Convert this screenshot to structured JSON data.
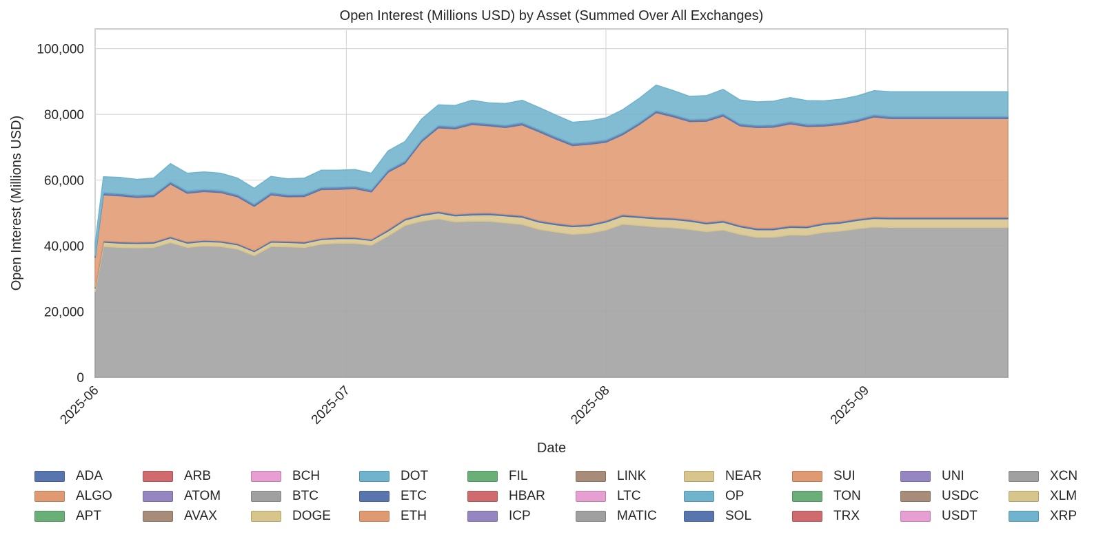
{
  "chart_data": {
    "type": "area",
    "stacked": true,
    "title": "Open Interest (Millions USD) by Asset (Summed Over All Exchanges)",
    "xlabel": "Date",
    "ylabel": "Open Interest (Millions USD)",
    "x_ticks": [
      "2025-06",
      "2025-07",
      "2025-08",
      "2025-09"
    ],
    "y_ticks": [
      "0",
      "20,000",
      "40,000",
      "60,000",
      "80,000",
      "100,000"
    ],
    "ylim": [
      0,
      106000
    ],
    "xlim": [
      "2025-06-01",
      "2025-09-18"
    ],
    "grid": true,
    "legend_position": "bottom",
    "x": [
      "2025-06-01",
      "2025-06-02",
      "2025-06-04",
      "2025-06-06",
      "2025-06-08",
      "2025-06-10",
      "2025-06-12",
      "2025-06-14",
      "2025-06-16",
      "2025-06-18",
      "2025-06-20",
      "2025-06-22",
      "2025-06-24",
      "2025-06-26",
      "2025-06-28",
      "2025-06-30",
      "2025-07-02",
      "2025-07-04",
      "2025-07-06",
      "2025-07-08",
      "2025-07-10",
      "2025-07-12",
      "2025-07-14",
      "2025-07-16",
      "2025-07-18",
      "2025-07-20",
      "2025-07-22",
      "2025-07-24",
      "2025-07-26",
      "2025-07-28",
      "2025-07-30",
      "2025-08-01",
      "2025-08-03",
      "2025-08-05",
      "2025-08-07",
      "2025-08-09",
      "2025-08-11",
      "2025-08-13",
      "2025-08-15",
      "2025-08-17",
      "2025-08-19",
      "2025-08-21",
      "2025-08-23",
      "2025-08-25",
      "2025-08-27",
      "2025-08-29",
      "2025-08-31",
      "2025-09-02",
      "2025-09-04",
      "2025-09-06",
      "2025-09-08",
      "2025-09-10",
      "2025-09-12",
      "2025-09-14",
      "2025-09-16",
      "2025-09-18"
    ],
    "series": [
      {
        "name": "BTC",
        "color": "#a0a0a0",
        "values": [
          26000,
          39800,
          39500,
          39400,
          39500,
          41000,
          39500,
          40000,
          39800,
          39000,
          37000,
          39800,
          39700,
          39500,
          40500,
          40800,
          40800,
          40200,
          43000,
          46200,
          47500,
          48200,
          47300,
          47500,
          47500,
          47000,
          46500,
          45000,
          44200,
          43500,
          43800,
          44800,
          46600,
          46200,
          45700,
          45500,
          45000,
          44300,
          44800,
          43500,
          42600,
          42600,
          43300,
          43200,
          44100,
          44500,
          45200,
          45700,
          45600,
          45600,
          45600,
          45600,
          45600,
          45600,
          45600,
          45600
        ]
      },
      {
        "name": "DOGE",
        "color": "#d8c58c",
        "values": [
          1000,
          1300,
          1300,
          1300,
          1300,
          1400,
          1300,
          1300,
          1300,
          1300,
          1200,
          1300,
          1300,
          1300,
          1400,
          1400,
          1400,
          1400,
          1500,
          1600,
          1700,
          1800,
          1800,
          1900,
          2000,
          2100,
          2200,
          2200,
          2200,
          2300,
          2300,
          2400,
          2400,
          2400,
          2500,
          2500,
          2500,
          2400,
          2400,
          2300,
          2300,
          2300,
          2300,
          2300,
          2400,
          2400,
          2500,
          2600,
          2600,
          2600,
          2600,
          2600,
          2600,
          2600,
          2600,
          2600
        ]
      },
      {
        "name": "SOL",
        "color": "#4c72b0",
        "values": [
          300,
          400,
          400,
          400,
          400,
          400,
          400,
          400,
          400,
          400,
          400,
          400,
          400,
          400,
          400,
          400,
          400,
          400,
          500,
          500,
          500,
          500,
          500,
          500,
          500,
          500,
          500,
          500,
          500,
          500,
          500,
          500,
          500,
          500,
          500,
          500,
          500,
          500,
          500,
          500,
          500,
          500,
          500,
          500,
          500,
          500,
          500,
          500,
          500,
          500,
          500,
          500,
          500,
          500,
          500,
          500
        ]
      },
      {
        "name": "ETH",
        "color": "#e09a72",
        "values": [
          9000,
          14000,
          14000,
          13600,
          13800,
          16000,
          14800,
          14800,
          14700,
          14200,
          13400,
          14000,
          13500,
          13800,
          14800,
          14600,
          14800,
          14400,
          17400,
          16800,
          22000,
          25400,
          26000,
          27000,
          26500,
          26400,
          27600,
          27000,
          25600,
          24200,
          24300,
          23800,
          24300,
          27800,
          31800,
          30800,
          29800,
          30700,
          31800,
          30200,
          30600,
          30700,
          31000,
          30300,
          29400,
          29500,
          29600,
          30400,
          30000,
          30000,
          30000,
          30000,
          30000,
          30000,
          30000,
          30000
        ]
      },
      {
        "name": "ADA",
        "color": "#5876ad",
        "values": [
          600,
          700,
          700,
          700,
          700,
          700,
          700,
          700,
          700,
          700,
          700,
          700,
          700,
          700,
          700,
          700,
          700,
          700,
          700,
          700,
          700,
          700,
          700,
          700,
          700,
          700,
          700,
          700,
          700,
          700,
          700,
          700,
          700,
          700,
          700,
          700,
          700,
          700,
          700,
          700,
          700,
          700,
          700,
          700,
          700,
          700,
          700,
          700,
          700,
          700,
          700,
          700,
          700,
          700,
          700,
          700
        ]
      },
      {
        "name": "XRP",
        "color": "#70b3cc",
        "values": [
          4000,
          4800,
          4900,
          4800,
          4900,
          5500,
          5400,
          5300,
          5200,
          5000,
          4800,
          4900,
          4800,
          4900,
          5200,
          5100,
          5100,
          5000,
          5800,
          5900,
          6200,
          6300,
          6400,
          6700,
          6300,
          6600,
          6800,
          6700,
          6600,
          6400,
          6400,
          6700,
          6900,
          7300,
          7700,
          7300,
          7000,
          7100,
          7400,
          7200,
          7100,
          7200,
          7300,
          7200,
          7000,
          7000,
          7100,
          7300,
          7500,
          7500,
          7500,
          7500,
          7500,
          7500,
          7500,
          7500
        ]
      }
    ]
  },
  "legend": [
    "ADA",
    "ALGO",
    "APT",
    "ARB",
    "ATOM",
    "AVAX",
    "BCH",
    "BTC",
    "DOGE",
    "DOT",
    "ETC",
    "ETH",
    "FIL",
    "HBAR",
    "ICP",
    "LINK",
    "LTC",
    "MATIC",
    "NEAR",
    "OP",
    "SOL",
    "SUI",
    "TON",
    "TRX",
    "UNI",
    "USDC",
    "USDT",
    "XCN",
    "XLM",
    "XRP"
  ],
  "legend_colors": [
    "#5876ad",
    "#e09a72",
    "#6aae78",
    "#cf6a6f",
    "#9585c0",
    "#a78c7a",
    "#e69fd0",
    "#a0a0a0",
    "#d8c58c",
    "#70b3cc",
    "#5876ad",
    "#e09a72",
    "#6aae78",
    "#cf6a6f",
    "#9585c0",
    "#a78c7a",
    "#e69fd0",
    "#a0a0a0",
    "#d8c58c",
    "#70b3cc",
    "#5876ad",
    "#e09a72",
    "#6aae78",
    "#cf6a6f",
    "#9585c0",
    "#a78c7a",
    "#e69fd0",
    "#a0a0a0",
    "#d8c58c",
    "#70b3cc"
  ]
}
